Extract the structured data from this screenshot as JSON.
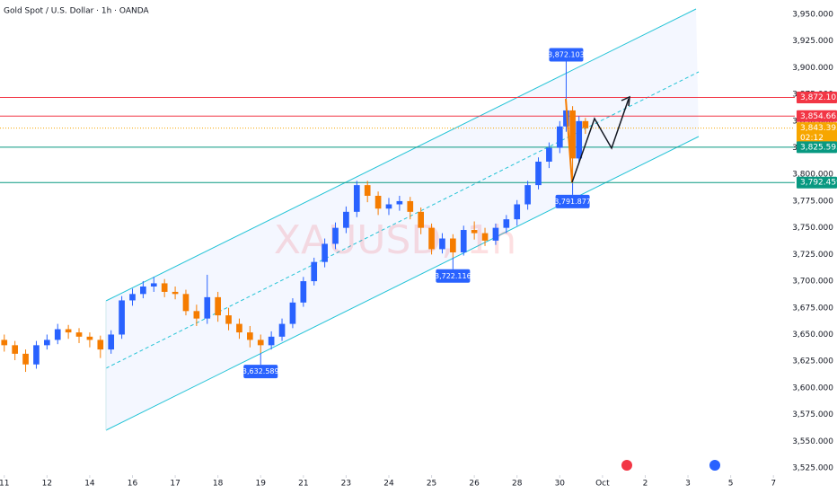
{
  "chart_data": {
    "type": "candlestick",
    "title": "Gold Spot / U.S. Dollar · 1h · OANDA",
    "watermark": "XAUUSD, 1h",
    "up_color": "#2962ff",
    "down_color": "#f57c00",
    "x": [
      0,
      0.25,
      0.5,
      0.75,
      1,
      1.25,
      1.5,
      1.75,
      2,
      2.25,
      2.5,
      2.75,
      3,
      3.25,
      3.5,
      3.75,
      4,
      4.25,
      4.5,
      4.75,
      5,
      5.25,
      5.5,
      5.75,
      6,
      6.25,
      6.5,
      6.75,
      7,
      7.25,
      7.5,
      7.75,
      8,
      8.25,
      8.5,
      8.75,
      9,
      9.25,
      9.5,
      9.75,
      10,
      10.25,
      10.5,
      10.75,
      11,
      11.25,
      11.5,
      11.75,
      12,
      12.25,
      12.5,
      12.75,
      13,
      13.15,
      13.3,
      13.45,
      13.6
    ],
    "open": [
      3645,
      3640,
      3632,
      3622,
      3640,
      3645,
      3655,
      3652,
      3648,
      3645,
      3636,
      3650,
      3682,
      3688,
      3695,
      3698,
      3690,
      3688,
      3672,
      3665,
      3685,
      3668,
      3660,
      3652,
      3645,
      3640,
      3648,
      3660,
      3680,
      3700,
      3718,
      3735,
      3750,
      3765,
      3790,
      3780,
      3768,
      3772,
      3775,
      3765,
      3750,
      3730,
      3740,
      3727,
      3748,
      3745,
      3738,
      3750,
      3758,
      3772,
      3790,
      3812,
      3825,
      3845,
      3860,
      3815,
      3850
    ],
    "high": [
      3650,
      3644,
      3636,
      3644,
      3650,
      3660,
      3659,
      3656,
      3652,
      3649,
      3654,
      3686,
      3693,
      3700,
      3704,
      3702,
      3695,
      3692,
      3678,
      3706,
      3690,
      3675,
      3665,
      3658,
      3650,
      3653,
      3665,
      3684,
      3704,
      3722,
      3740,
      3755,
      3770,
      3794,
      3794,
      3784,
      3778,
      3780,
      3779,
      3769,
      3754,
      3745,
      3744,
      3752,
      3756,
      3750,
      3754,
      3762,
      3776,
      3794,
      3816,
      3830,
      3850,
      3872.103,
      3864,
      3854.663,
      3853
    ],
    "low": [
      3634,
      3626,
      3615,
      3618,
      3636,
      3641,
      3646,
      3642,
      3638,
      3628,
      3632,
      3646,
      3677,
      3684,
      3690,
      3685,
      3683,
      3668,
      3658,
      3660,
      3662,
      3654,
      3646,
      3638,
      3632.589,
      3636,
      3644,
      3656,
      3676,
      3696,
      3713,
      3730,
      3745,
      3760,
      3774,
      3762,
      3762,
      3766,
      3758,
      3744,
      3725,
      3726,
      3722.116,
      3724,
      3739,
      3733,
      3734,
      3745,
      3752,
      3767,
      3786,
      3806,
      3820,
      3840,
      3791.877,
      3810,
      3838
    ],
    "close": [
      3640,
      3632,
      3622,
      3640,
      3645,
      3655,
      3652,
      3648,
      3645,
      3636,
      3650,
      3682,
      3688,
      3695,
      3698,
      3690,
      3688,
      3672,
      3665,
      3685,
      3668,
      3660,
      3652,
      3645,
      3640,
      3648,
      3660,
      3680,
      3700,
      3718,
      3735,
      3750,
      3765,
      3790,
      3780,
      3768,
      3772,
      3775,
      3765,
      3750,
      3730,
      3740,
      3727,
      3748,
      3745,
      3738,
      3750,
      3758,
      3772,
      3790,
      3812,
      3825,
      3845,
      3860,
      3815,
      3850,
      3843.395
    ],
    "xlim": [
      -0.1,
      18.5
    ],
    "xticks": [
      {
        "value": 0,
        "label": "11"
      },
      {
        "value": 1,
        "label": "12"
      },
      {
        "value": 2,
        "label": "14"
      },
      {
        "value": 3,
        "label": "16"
      },
      {
        "value": 4,
        "label": "17"
      },
      {
        "value": 5,
        "label": "18"
      },
      {
        "value": 6,
        "label": "19"
      },
      {
        "value": 7,
        "label": "21"
      },
      {
        "value": 8,
        "label": "23"
      },
      {
        "value": 9,
        "label": "24"
      },
      {
        "value": 10,
        "label": "25"
      },
      {
        "value": 11,
        "label": "26"
      },
      {
        "value": 12,
        "label": "28"
      },
      {
        "value": 13,
        "label": "30"
      },
      {
        "value": 14,
        "label": "Oct"
      },
      {
        "value": 15,
        "label": "2"
      },
      {
        "value": 16,
        "label": "3"
      },
      {
        "value": 17,
        "label": "5"
      },
      {
        "value": 18,
        "label": "7"
      }
    ],
    "ylim": [
      3525,
      3950
    ],
    "yticks": [
      {
        "value": 3525,
        "label": "3,525.000"
      },
      {
        "value": 3550,
        "label": "3,550.000"
      },
      {
        "value": 3575,
        "label": "3,575.000"
      },
      {
        "value": 3600,
        "label": "3,600.000"
      },
      {
        "value": 3625,
        "label": "3,625.000"
      },
      {
        "value": 3650,
        "label": "3,650.000"
      },
      {
        "value": 3675,
        "label": "3,675.000"
      },
      {
        "value": 3700,
        "label": "3,700.000"
      },
      {
        "value": 3725,
        "label": "3,725.000"
      },
      {
        "value": 3750,
        "label": "3,750.000"
      },
      {
        "value": 3775,
        "label": "3,775.000"
      },
      {
        "value": 3800,
        "label": "3,800.000"
      },
      {
        "value": 3825,
        "label": "3,825.000"
      },
      {
        "value": 3850,
        "label": "3,850.000"
      },
      {
        "value": 3875,
        "label": "3,875.000"
      },
      {
        "value": 3900,
        "label": "3,900.000"
      },
      {
        "value": 3925,
        "label": "3,925.000"
      },
      {
        "value": 3950,
        "label": "3,950.000"
      }
    ],
    "levels": [
      {
        "value": 3872.103,
        "label": "3,872.103",
        "color": "#f23645"
      },
      {
        "value": 3854.663,
        "label": "3,854.663",
        "color": "#f23645"
      },
      {
        "value": 3843.395,
        "label": "3,843.395",
        "color": "#f7a600",
        "countdown": "02:12"
      },
      {
        "value": 3825.595,
        "label": "3,825.595",
        "color": "#089981"
      },
      {
        "value": 3792.459,
        "label": "3,792.459",
        "color": "#089981"
      }
    ],
    "annotations": [
      {
        "x": 13.15,
        "value": 3872.103,
        "label": "3,872.103"
      },
      {
        "x": 13.3,
        "value": 3791.877,
        "label": "3,791.877"
      },
      {
        "x": 10.5,
        "value": 3722.116,
        "label": "3,722.116"
      },
      {
        "x": 6,
        "value": 3632.589,
        "label": "3,632.589"
      }
    ]
  }
}
